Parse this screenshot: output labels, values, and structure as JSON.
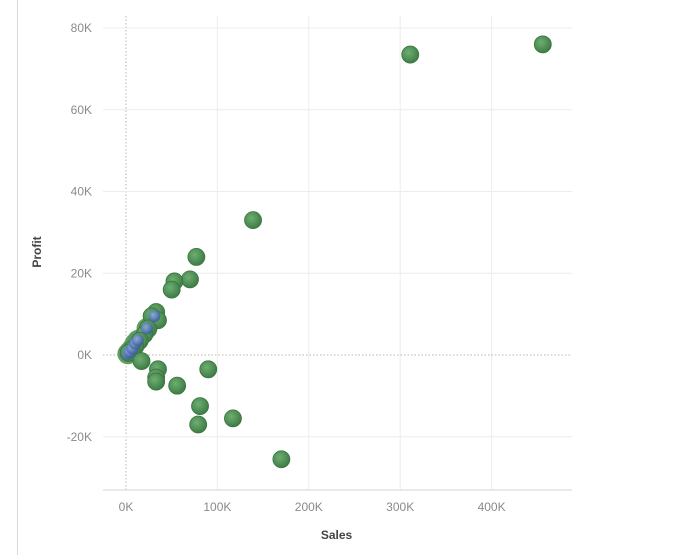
{
  "chart_data": {
    "type": "scatter",
    "title": "",
    "xlabel": "Sales",
    "ylabel": "Profit",
    "xlim": [
      -25000,
      485000
    ],
    "ylim": [
      -32000,
      84000
    ],
    "x_ticks": [
      {
        "value": 0,
        "label": "0K"
      },
      {
        "value": 100000,
        "label": "100K"
      },
      {
        "value": 200000,
        "label": "200K"
      },
      {
        "value": 300000,
        "label": "300K"
      },
      {
        "value": 400000,
        "label": "400K"
      }
    ],
    "y_ticks": [
      {
        "value": 80000,
        "label": "80K"
      },
      {
        "value": 60000,
        "label": "60K"
      },
      {
        "value": 40000,
        "label": "40K"
      },
      {
        "value": 20000,
        "label": "20K"
      },
      {
        "value": 0,
        "label": "0K"
      },
      {
        "value": -20000,
        "label": "-20K"
      }
    ],
    "grid": true,
    "point_color": "#4f8f55",
    "dense_color": "#4f6ea8",
    "points": [
      {
        "x": 456000,
        "y": 76000
      },
      {
        "x": 311000,
        "y": 73500
      },
      {
        "x": 139000,
        "y": 33000
      },
      {
        "x": 77000,
        "y": 24000
      },
      {
        "x": 70000,
        "y": 18500
      },
      {
        "x": 53000,
        "y": 18000
      },
      {
        "x": 50000,
        "y": 16000
      },
      {
        "x": 33000,
        "y": 10500
      },
      {
        "x": 28000,
        "y": 9500
      },
      {
        "x": 35000,
        "y": 8500
      },
      {
        "x": 24000,
        "y": 6500
      },
      {
        "x": 20000,
        "y": 5000
      },
      {
        "x": 15000,
        "y": 3500
      },
      {
        "x": 10000,
        "y": 2000
      },
      {
        "x": 6000,
        "y": 1200
      },
      {
        "x": 3000,
        "y": 500
      },
      {
        "x": 17000,
        "y": -1500
      },
      {
        "x": 35000,
        "y": -3500
      },
      {
        "x": 33000,
        "y": -5500
      },
      {
        "x": 33000,
        "y": -6500
      },
      {
        "x": 56000,
        "y": -7500
      },
      {
        "x": 90000,
        "y": -3500
      },
      {
        "x": 81000,
        "y": -12500
      },
      {
        "x": 79000,
        "y": -17000
      },
      {
        "x": 117000,
        "y": -15500
      },
      {
        "x": 170000,
        "y": -25500
      }
    ],
    "dense_points": [
      {
        "x": 2000,
        "y": 300
      },
      {
        "x": 4000,
        "y": 800
      },
      {
        "x": 7000,
        "y": 1600
      },
      {
        "x": 10000,
        "y": 2800
      },
      {
        "x": 13000,
        "y": 3600
      },
      {
        "x": 23000,
        "y": 6500
      },
      {
        "x": 31000,
        "y": 9500
      }
    ]
  }
}
